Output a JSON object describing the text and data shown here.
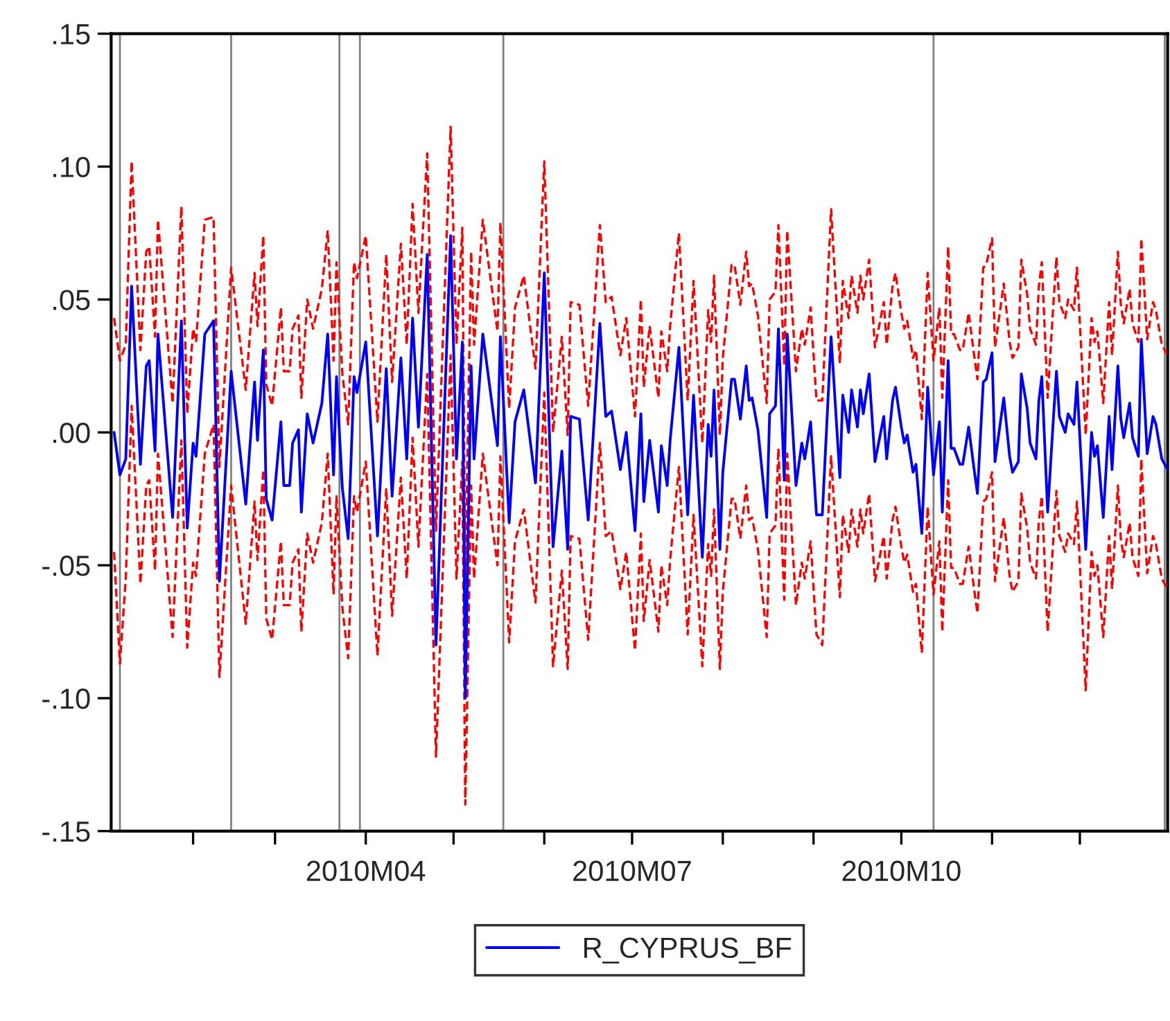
{
  "chart_data": {
    "type": "line",
    "x": [
      "2010-01-05",
      "2010-01-07",
      "2010-01-09",
      "2010-01-11",
      "2010-01-14",
      "2010-01-16",
      "2010-01-17",
      "2010-01-19",
      "2010-01-20",
      "2010-01-25",
      "2010-01-28",
      "2010-01-30",
      "2010-02-01",
      "2010-02-02",
      "2010-02-05",
      "2010-02-08",
      "2010-02-10",
      "2010-02-14",
      "2010-02-19",
      "2010-02-22",
      "2010-02-23",
      "2010-02-25",
      "2010-02-26",
      "2010-02-28",
      "2010-03-03",
      "2010-03-04",
      "2010-03-06",
      "2010-03-07",
      "2010-03-09",
      "2010-03-10",
      "2010-03-12",
      "2010-03-14",
      "2010-03-17",
      "2010-03-19",
      "2010-03-21",
      "2010-03-22",
      "2010-03-24",
      "2010-03-26",
      "2010-03-28",
      "2010-03-29",
      "2010-04-01",
      "2010-04-05",
      "2010-04-08",
      "2010-04-10",
      "2010-04-13",
      "2010-04-15",
      "2010-04-17",
      "2010-04-19",
      "2010-04-22",
      "2010-04-25",
      "2010-04-30",
      "2010-05-02",
      "2010-05-04",
      "2010-05-05",
      "2010-05-07",
      "2010-05-08",
      "2010-05-11",
      "2010-05-16",
      "2010-05-17",
      "2010-05-20",
      "2010-05-22",
      "2010-05-25",
      "2010-05-29",
      "2010-06-01",
      "2010-06-04",
      "2010-06-07",
      "2010-06-09",
      "2010-06-10",
      "2010-06-13",
      "2010-06-16",
      "2010-06-20",
      "2010-06-22",
      "2010-06-24",
      "2010-06-27",
      "2010-06-29",
      "2010-07-02",
      "2010-07-04",
      "2010-07-05",
      "2010-07-07",
      "2010-07-10",
      "2010-07-11",
      "2010-07-13",
      "2010-07-14",
      "2010-07-17",
      "2010-07-20",
      "2010-07-22",
      "2010-07-25",
      "2010-07-27",
      "2010-07-28",
      "2010-07-29",
      "2010-07-31",
      "2010-08-01",
      "2010-08-04",
      "2010-08-05",
      "2010-08-07",
      "2010-08-09",
      "2010-08-10",
      "2010-08-11",
      "2010-08-13",
      "2010-08-16",
      "2010-08-17",
      "2010-08-19",
      "2010-08-20",
      "2010-08-22",
      "2010-08-23",
      "2010-08-26",
      "2010-08-28",
      "2010-08-29",
      "2010-08-31",
      "2010-09-02",
      "2010-09-04",
      "2010-09-07",
      "2010-09-10",
      "2010-09-11",
      "2010-09-13",
      "2010-09-14",
      "2010-09-16",
      "2010-09-17",
      "2010-09-18",
      "2010-09-20",
      "2010-09-22",
      "2010-09-25",
      "2010-09-26",
      "2010-09-28",
      "2010-09-29",
      "2010-10-01",
      "2010-10-02",
      "2010-10-03",
      "2010-10-05",
      "2010-10-06",
      "2010-10-08",
      "2010-10-10",
      "2010-10-12",
      "2010-10-14",
      "2010-10-15",
      "2010-10-17",
      "2010-10-18",
      "2010-10-19",
      "2010-10-21",
      "2010-10-22",
      "2010-10-24",
      "2010-10-26",
      "2010-10-27",
      "2010-10-29",
      "2010-10-30",
      "2010-11-01",
      "2010-11-02",
      "2010-11-05",
      "2010-11-07",
      "2010-11-08",
      "2010-11-10",
      "2010-11-11",
      "2010-11-13",
      "2010-11-14",
      "2010-11-16",
      "2010-11-17",
      "2010-11-18",
      "2010-11-20",
      "2010-11-22",
      "2010-11-23",
      "2010-11-24",
      "2010-11-26",
      "2010-11-27",
      "2010-11-29",
      "2010-11-30",
      "2010-12-03",
      "2010-12-05",
      "2010-12-06",
      "2010-12-07",
      "2010-12-09",
      "2010-12-11",
      "2010-12-12",
      "2010-12-14",
      "2010-12-15",
      "2010-12-16",
      "2010-12-18",
      "2010-12-19",
      "2010-12-21",
      "2010-12-22",
      "2010-12-24",
      "2010-12-26",
      "2010-12-27",
      "2010-12-29",
      "2010-12-31"
    ],
    "series": [
      {
        "name": "R_CYPRUS_BF",
        "color": "#0000ff",
        "line_style": "solid",
        "values": [
          0.0,
          -0.016,
          -0.01,
          0.055,
          -0.012,
          0.025,
          0.027,
          -0.007,
          0.037,
          -0.032,
          0.042,
          -0.036,
          -0.004,
          -0.009,
          0.037,
          0.042,
          -0.056,
          0.023,
          -0.027,
          0.019,
          -0.003,
          0.031,
          -0.025,
          -0.033,
          0.004,
          -0.02,
          -0.02,
          -0.004,
          0.001,
          -0.03,
          0.007,
          -0.004,
          0.011,
          0.037,
          -0.016,
          0.021,
          -0.021,
          -0.04,
          0.021,
          0.015,
          0.034,
          -0.039,
          0.024,
          -0.024,
          0.028,
          -0.01,
          0.043,
          0.002,
          0.067,
          -0.08,
          0.074,
          -0.01,
          0.034,
          -0.1,
          0.025,
          -0.01,
          0.037,
          -0.005,
          0.036,
          -0.034,
          0.004,
          0.016,
          -0.019,
          0.06,
          -0.043,
          -0.007,
          -0.044,
          0.006,
          0.005,
          -0.033,
          0.041,
          0.006,
          0.008,
          -0.014,
          0.0,
          -0.037,
          0.007,
          -0.026,
          -0.003,
          -0.03,
          -0.005,
          -0.02,
          -0.003,
          0.032,
          -0.031,
          0.014,
          -0.047,
          0.003,
          -0.009,
          0.016,
          -0.044,
          -0.015,
          0.02,
          0.02,
          0.005,
          0.025,
          0.012,
          0.013,
          0.001,
          -0.032,
          0.007,
          0.01,
          0.039,
          -0.018,
          0.037,
          -0.02,
          -0.004,
          -0.01,
          0.004,
          -0.031,
          -0.031,
          0.036,
          -0.017,
          0.014,
          0.0,
          0.016,
          0.002,
          0.016,
          0.007,
          0.022,
          -0.011,
          0.006,
          -0.01,
          0.012,
          0.017,
          0.002,
          -0.004,
          -0.001,
          -0.015,
          -0.012,
          -0.038,
          0.017,
          -0.016,
          0.004,
          -0.03,
          0.027,
          -0.006,
          -0.006,
          -0.012,
          -0.012,
          0.002,
          -0.015,
          -0.023,
          0.019,
          0.02,
          0.03,
          -0.011,
          0.013,
          -0.009,
          -0.015,
          -0.011,
          0.022,
          0.009,
          -0.004,
          -0.01,
          0.012,
          0.021,
          -0.03,
          0.006,
          0.023,
          0.006,
          0.0,
          0.007,
          0.003,
          0.019,
          -0.044,
          0.0,
          -0.009,
          -0.005,
          -0.032,
          0.006,
          -0.014,
          0.025,
          0.005,
          -0.002,
          0.011,
          -0.002,
          -0.009,
          0.035,
          -0.008,
          0.006,
          0.003,
          -0.01,
          -0.014
        ]
      },
      {
        "color": "#ff0000",
        "line_style": "dashed",
        "values": [
          0.043,
          0.027,
          0.033,
          0.102,
          0.031,
          0.068,
          0.07,
          0.036,
          0.08,
          0.011,
          0.085,
          0.007,
          0.039,
          0.034,
          0.08,
          0.081,
          -0.013,
          0.062,
          0.016,
          0.06,
          0.04,
          0.074,
          0.018,
          0.01,
          0.047,
          0.023,
          0.023,
          0.039,
          0.044,
          0.013,
          0.05,
          0.039,
          0.054,
          0.076,
          0.027,
          0.064,
          0.022,
          0.003,
          0.064,
          0.058,
          0.074,
          0.004,
          0.067,
          0.019,
          0.071,
          0.033,
          0.086,
          0.045,
          0.105,
          -0.037,
          0.115,
          0.033,
          0.077,
          -0.057,
          0.068,
          0.033,
          0.08,
          0.038,
          0.079,
          0.009,
          0.047,
          0.059,
          0.024,
          0.102,
          0.0,
          0.036,
          -0.001,
          0.049,
          0.048,
          0.01,
          0.078,
          0.049,
          0.051,
          0.029,
          0.043,
          0.006,
          0.05,
          0.017,
          0.04,
          0.013,
          0.038,
          0.023,
          0.04,
          0.075,
          0.012,
          0.057,
          -0.004,
          0.046,
          0.034,
          0.059,
          -0.001,
          0.028,
          0.063,
          0.063,
          0.048,
          0.068,
          0.055,
          0.056,
          0.044,
          0.011,
          0.05,
          0.053,
          0.078,
          0.025,
          0.076,
          0.023,
          0.039,
          0.033,
          0.047,
          0.012,
          0.012,
          0.084,
          0.026,
          0.057,
          0.043,
          0.059,
          0.045,
          0.059,
          0.05,
          0.065,
          0.032,
          0.049,
          0.033,
          0.055,
          0.06,
          0.045,
          0.039,
          0.042,
          0.028,
          0.031,
          0.005,
          0.06,
          0.027,
          0.047,
          0.013,
          0.07,
          0.037,
          0.037,
          0.031,
          0.031,
          0.045,
          0.028,
          0.02,
          0.062,
          0.063,
          0.073,
          0.032,
          0.056,
          0.034,
          0.028,
          0.032,
          0.065,
          0.052,
          0.039,
          0.033,
          0.055,
          0.064,
          0.013,
          0.049,
          0.066,
          0.049,
          0.043,
          0.05,
          0.046,
          0.062,
          -0.001,
          0.043,
          0.034,
          0.038,
          0.011,
          0.049,
          0.029,
          0.068,
          0.048,
          0.041,
          0.054,
          0.041,
          0.034,
          0.073,
          0.035,
          0.049,
          0.046,
          0.033,
          0.029
        ]
      },
      {
        "color": "#ff0000",
        "line_style": "dashed",
        "values": [
          -0.045,
          -0.087,
          -0.055,
          0.01,
          -0.057,
          -0.02,
          -0.018,
          -0.052,
          -0.008,
          -0.077,
          -0.003,
          -0.081,
          -0.049,
          -0.054,
          -0.008,
          0.003,
          -0.092,
          -0.02,
          -0.072,
          -0.026,
          -0.048,
          -0.014,
          -0.07,
          -0.078,
          -0.041,
          -0.065,
          -0.065,
          -0.049,
          -0.044,
          -0.075,
          -0.038,
          -0.049,
          -0.034,
          -0.008,
          -0.061,
          -0.024,
          -0.066,
          -0.085,
          -0.024,
          -0.03,
          -0.011,
          -0.084,
          -0.021,
          -0.069,
          -0.017,
          -0.055,
          -0.002,
          -0.043,
          0.022,
          -0.122,
          0.029,
          -0.055,
          -0.011,
          -0.14,
          -0.02,
          -0.055,
          -0.008,
          -0.05,
          -0.009,
          -0.079,
          -0.041,
          -0.029,
          -0.064,
          0.015,
          -0.088,
          -0.052,
          -0.089,
          -0.039,
          -0.04,
          -0.078,
          -0.004,
          -0.039,
          -0.037,
          -0.059,
          -0.045,
          -0.082,
          -0.038,
          -0.071,
          -0.048,
          -0.075,
          -0.05,
          -0.065,
          -0.048,
          -0.013,
          -0.076,
          -0.031,
          -0.088,
          -0.042,
          -0.054,
          -0.029,
          -0.089,
          -0.06,
          -0.025,
          -0.025,
          -0.04,
          -0.02,
          -0.033,
          -0.032,
          -0.044,
          -0.077,
          -0.038,
          -0.035,
          -0.006,
          -0.063,
          -0.008,
          -0.065,
          -0.049,
          -0.055,
          -0.041,
          -0.076,
          -0.08,
          -0.009,
          -0.062,
          -0.031,
          -0.045,
          -0.029,
          -0.043,
          -0.029,
          -0.038,
          -0.023,
          -0.056,
          -0.039,
          -0.055,
          -0.033,
          -0.028,
          -0.043,
          -0.049,
          -0.046,
          -0.06,
          -0.057,
          -0.083,
          -0.028,
          -0.061,
          -0.041,
          -0.075,
          -0.018,
          -0.051,
          -0.051,
          -0.057,
          -0.057,
          -0.043,
          -0.06,
          -0.068,
          -0.026,
          -0.025,
          -0.015,
          -0.056,
          -0.032,
          -0.054,
          -0.06,
          -0.056,
          -0.023,
          -0.036,
          -0.049,
          -0.055,
          -0.033,
          -0.024,
          -0.075,
          -0.039,
          -0.022,
          -0.039,
          -0.045,
          -0.038,
          -0.042,
          -0.026,
          -0.097,
          -0.045,
          -0.054,
          -0.05,
          -0.077,
          -0.039,
          -0.059,
          -0.02,
          -0.04,
          -0.047,
          -0.034,
          -0.047,
          -0.054,
          -0.01,
          -0.053,
          -0.039,
          -0.042,
          -0.055,
          -0.059
        ]
      }
    ],
    "xlim": [
      "2010-01-04",
      "2010-12-31"
    ],
    "xticks": [
      {
        "value": "2010-02",
        "label": null
      },
      {
        "value": "2010-03",
        "label": null
      },
      {
        "value": "2010-04",
        "label": "2010M04"
      },
      {
        "value": "2010-05",
        "label": null
      },
      {
        "value": "2010-06",
        "label": null
      },
      {
        "value": "2010-07",
        "label": "2010M07"
      },
      {
        "value": "2010-08",
        "label": null
      },
      {
        "value": "2010-09",
        "label": null
      },
      {
        "value": "2010-10",
        "label": "2010M10"
      },
      {
        "value": "2010-11",
        "label": null
      },
      {
        "value": "2010-12",
        "label": null
      }
    ],
    "ylim": [
      -0.15,
      0.15
    ],
    "yticks": [
      {
        "value": -0.15,
        "label": "-.15"
      },
      {
        "value": -0.1,
        "label": "-.10"
      },
      {
        "value": -0.05,
        "label": "-.05"
      },
      {
        "value": 0,
        "label": ".00"
      },
      {
        "value": 0.05,
        "label": ".05"
      },
      {
        "value": 0.1,
        "label": ".10"
      },
      {
        "value": 0.15,
        "label": ".15"
      }
    ],
    "ref_lines": [
      {
        "axis": "x",
        "value": "2010-01-07",
        "color": "#808080"
      },
      {
        "axis": "x",
        "value": "2010-02-14",
        "color": "#808080"
      },
      {
        "axis": "x",
        "value": "2010-03-23",
        "color": "#808080"
      },
      {
        "axis": "x",
        "value": "2010-03-30",
        "color": "#808080"
      },
      {
        "axis": "x",
        "value": "2010-05-18",
        "color": "#808080"
      },
      {
        "axis": "x",
        "value": "2010-10-12",
        "color": "#808080"
      },
      {
        "axis": "x",
        "value": "2010-12-30",
        "color": "#808080"
      }
    ],
    "grid": false,
    "legend": "bottom"
  }
}
